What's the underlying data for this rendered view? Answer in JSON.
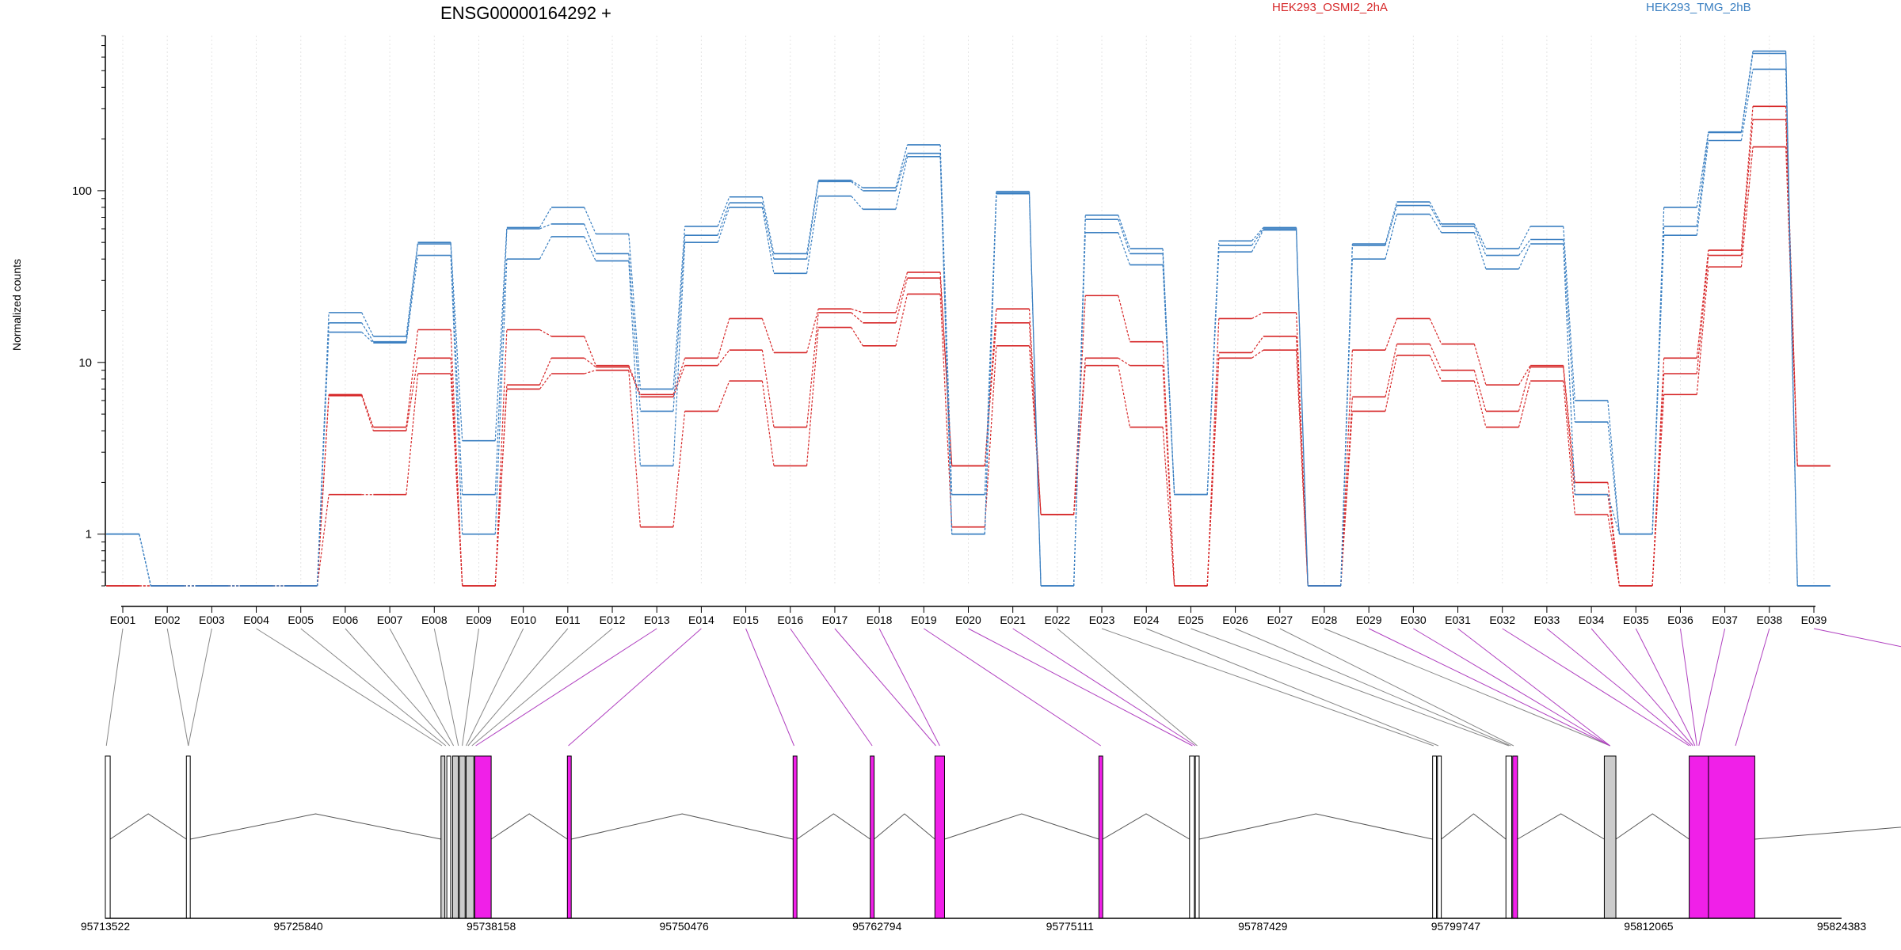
{
  "chart_data": {
    "type": "line",
    "title": "ENSG00000164292 +",
    "ylabel": "Normalized counts",
    "xlabel": "",
    "yscale": "log",
    "ylim": [
      0.5,
      800
    ],
    "yticks": [
      1,
      10,
      100
    ],
    "ytick_labels": [
      "1",
      "10",
      "100"
    ],
    "grid": "vertical dotted",
    "legend_placement": "top",
    "categories": [
      "E001",
      "E002",
      "E003",
      "E004",
      "E005",
      "E006",
      "E007",
      "E008",
      "E009",
      "E010",
      "E011",
      "E012",
      "E013",
      "E014",
      "E015",
      "E016",
      "E017",
      "E018",
      "E019",
      "E020",
      "E021",
      "E022",
      "E023",
      "E024",
      "E025",
      "E026",
      "E027",
      "E028",
      "E029",
      "E030",
      "E031",
      "E032",
      "E033",
      "E034",
      "E035",
      "E036",
      "E037",
      "E038",
      "E039"
    ],
    "series": [
      {
        "name": "HEK293_OSMI2_2hA",
        "color": "#d62728",
        "values": [
          0.5,
          0.5,
          0.5,
          0.5,
          0.5,
          6.5,
          4.2,
          15.5,
          0.5,
          15.5,
          14.2,
          9.6,
          6.5,
          10.6,
          18.0,
          11.4,
          20.5,
          19.5,
          33.5,
          2.5,
          20.5,
          1.3,
          24.5,
          13.2,
          0.5,
          18.0,
          19.5,
          0.5,
          11.8,
          18.0,
          12.8,
          7.4,
          9.6,
          2.0,
          0.5,
          10.6,
          45.0,
          310.0,
          2.5
        ]
      },
      {
        "name": "",
        "color": "#d62728",
        "values": [
          0.5,
          0.5,
          0.5,
          0.5,
          0.5,
          6.4,
          4.0,
          10.6,
          0.5,
          7.4,
          10.6,
          9.4,
          6.3,
          9.6,
          11.8,
          4.2,
          19.5,
          17.0,
          31.0,
          2.5,
          17.0,
          1.3,
          10.6,
          9.6,
          0.5,
          11.4,
          14.2,
          0.5,
          6.3,
          12.8,
          9.0,
          5.2,
          9.4,
          1.7,
          0.5,
          8.6,
          42.0,
          260.0,
          2.5
        ]
      },
      {
        "name": "",
        "color": "#d62728",
        "values": [
          0.5,
          0.5,
          0.5,
          0.5,
          0.5,
          1.7,
          1.7,
          8.6,
          0.5,
          7.0,
          8.6,
          9.0,
          1.1,
          5.2,
          7.8,
          2.5,
          16.0,
          12.5,
          25.0,
          1.1,
          12.5,
          1.3,
          9.6,
          4.2,
          0.5,
          10.6,
          11.8,
          0.5,
          5.2,
          11.0,
          7.8,
          4.2,
          7.8,
          1.3,
          0.5,
          6.5,
          36.0,
          180.0,
          2.5
        ]
      },
      {
        "name": "HEK293_TMG_2hB",
        "color": "#3a7fc1",
        "values": [
          1.0,
          0.5,
          0.5,
          0.5,
          0.5,
          19.5,
          14.2,
          50.0,
          3.5,
          61.0,
          80.0,
          56.0,
          7.0,
          62.0,
          92.0,
          43.0,
          115.0,
          104.0,
          185.0,
          1.7,
          99.0,
          0.5,
          72.0,
          46.0,
          1.7,
          51.0,
          61.0,
          0.5,
          49.0,
          86.0,
          64.0,
          46.0,
          62.0,
          6.0,
          1.0,
          80.0,
          220.0,
          650.0,
          0.5
        ]
      },
      {
        "name": "",
        "color": "#3a7fc1",
        "values": [
          1.0,
          0.5,
          0.5,
          0.5,
          0.5,
          17.0,
          13.2,
          49.0,
          1.7,
          60.0,
          64.0,
          43.0,
          5.2,
          55.0,
          85.0,
          40.0,
          113.0,
          100.0,
          165.0,
          1.0,
          97.0,
          0.5,
          68.0,
          43.0,
          1.7,
          48.0,
          60.0,
          0.5,
          48.0,
          82.0,
          62.0,
          42.0,
          52.0,
          4.5,
          1.0,
          62.0,
          218.0,
          630.0,
          0.5
        ]
      },
      {
        "name": "",
        "color": "#3a7fc1",
        "values": [
          1.0,
          0.5,
          0.5,
          0.5,
          0.5,
          15.0,
          13.0,
          42.0,
          1.0,
          40.0,
          54.0,
          39.0,
          2.5,
          50.0,
          80.0,
          33.0,
          93.0,
          78.0,
          158.0,
          1.0,
          96.0,
          0.5,
          57.0,
          37.0,
          1.7,
          44.0,
          59.0,
          0.5,
          40.0,
          73.0,
          57.0,
          35.0,
          49.0,
          1.7,
          1.0,
          55.0,
          196.0,
          510.0,
          0.5
        ]
      }
    ],
    "gene_model": {
      "chromosome_coords": [
        "95713522",
        "95725840",
        "95738158",
        "95750476",
        "95762794",
        "95775111",
        "95787429",
        "95799747",
        "95812065",
        "95824383"
      ],
      "exon_fill_colors": {
        "not_significant": "#ffffff",
        "significant": "#f020e8",
        "intermediate": "#cccccc"
      },
      "significant_exons": [
        "E013",
        "E014",
        "E015",
        "E016",
        "E017",
        "E018",
        "E019",
        "E020",
        "E021",
        "E029",
        "E030",
        "E031",
        "E032",
        "E033",
        "E034",
        "E035",
        "E036",
        "E037",
        "E038",
        "E039"
      ],
      "connector_colors": {
        "default": "#888888",
        "significant": "#b040c0"
      }
    }
  }
}
